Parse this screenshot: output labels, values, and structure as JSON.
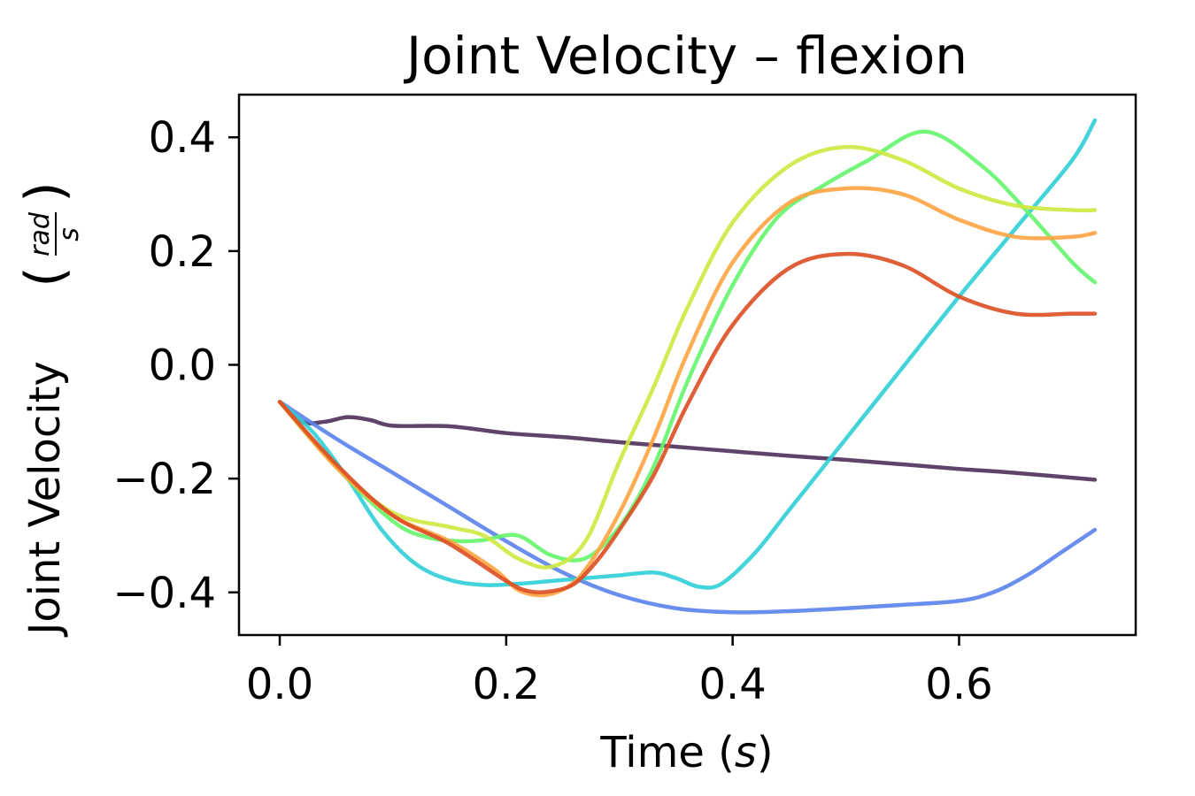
{
  "chart_data": {
    "type": "line",
    "title": "Joint Velocity – flexion",
    "xlabel": "Time",
    "xlabel_unit": "s",
    "ylabel": "Joint Velocity",
    "ylabel_unit_num": "rad",
    "ylabel_unit_den": "s",
    "xlim": [
      -0.036,
      0.756
    ],
    "ylim": [
      -0.475,
      0.475
    ],
    "xticks": [
      0.0,
      0.2,
      0.4,
      0.6
    ],
    "xtick_labels": [
      "0.0",
      "0.2",
      "0.4",
      "0.6"
    ],
    "yticks": [
      0.4,
      0.2,
      0.0,
      -0.2,
      -0.4
    ],
    "ytick_labels": [
      "0.4",
      "0.2",
      "0.0",
      "−0.2",
      "−0.4"
    ],
    "grid": false,
    "series": [
      {
        "name": "series-1",
        "color": "#4B3058",
        "x": [
          0,
          0.02,
          0.04,
          0.06,
          0.08,
          0.1,
          0.15,
          0.2,
          0.25,
          0.3,
          0.35,
          0.4,
          0.45,
          0.5,
          0.55,
          0.6,
          0.65,
          0.72
        ],
        "y": [
          -0.065,
          -0.1,
          -0.1,
          -0.092,
          -0.097,
          -0.107,
          -0.108,
          -0.12,
          -0.127,
          -0.136,
          -0.144,
          -0.152,
          -0.16,
          -0.167,
          -0.175,
          -0.183,
          -0.19,
          -0.202
        ]
      },
      {
        "name": "series-2",
        "color": "#5A82EC",
        "x": [
          0,
          0.05,
          0.1,
          0.15,
          0.2,
          0.25,
          0.3,
          0.35,
          0.4,
          0.45,
          0.5,
          0.55,
          0.6,
          0.63,
          0.66,
          0.69,
          0.72
        ],
        "y": [
          -0.065,
          -0.13,
          -0.19,
          -0.25,
          -0.31,
          -0.365,
          -0.405,
          -0.428,
          -0.435,
          -0.433,
          -0.428,
          -0.422,
          -0.415,
          -0.4,
          -0.37,
          -0.33,
          -0.29
        ]
      },
      {
        "name": "series-3",
        "color": "#2ECFD6",
        "x": [
          0,
          0.03,
          0.06,
          0.09,
          0.12,
          0.15,
          0.18,
          0.21,
          0.24,
          0.27,
          0.3,
          0.33,
          0.35,
          0.37,
          0.39,
          0.42,
          0.45,
          0.5,
          0.55,
          0.6,
          0.65,
          0.7,
          0.72
        ],
        "y": [
          -0.065,
          -0.12,
          -0.2,
          -0.29,
          -0.35,
          -0.378,
          -0.387,
          -0.385,
          -0.38,
          -0.375,
          -0.37,
          -0.365,
          -0.375,
          -0.39,
          -0.385,
          -0.33,
          -0.255,
          -0.13,
          -0.005,
          0.12,
          0.24,
          0.36,
          0.43
        ]
      },
      {
        "name": "series-4",
        "color": "#64F56A",
        "x": [
          0,
          0.05,
          0.1,
          0.13,
          0.16,
          0.18,
          0.21,
          0.24,
          0.27,
          0.3,
          0.33,
          0.36,
          0.4,
          0.44,
          0.48,
          0.52,
          0.57,
          0.62,
          0.66,
          0.7,
          0.72
        ],
        "y": [
          -0.065,
          -0.18,
          -0.275,
          -0.303,
          -0.31,
          -0.308,
          -0.3,
          -0.335,
          -0.34,
          -0.285,
          -0.18,
          -0.03,
          0.14,
          0.26,
          0.315,
          0.36,
          0.41,
          0.35,
          0.27,
          0.18,
          0.145
        ]
      },
      {
        "name": "series-5",
        "color": "#CFE840",
        "x": [
          0,
          0.05,
          0.1,
          0.15,
          0.18,
          0.21,
          0.24,
          0.27,
          0.3,
          0.33,
          0.36,
          0.4,
          0.45,
          0.5,
          0.55,
          0.6,
          0.65,
          0.7,
          0.72
        ],
        "y": [
          -0.065,
          -0.18,
          -0.26,
          -0.285,
          -0.3,
          -0.34,
          -0.355,
          -0.31,
          -0.17,
          -0.04,
          0.1,
          0.25,
          0.35,
          0.383,
          0.36,
          0.31,
          0.28,
          0.272,
          0.272
        ]
      },
      {
        "name": "series-6",
        "color": "#FEA441",
        "x": [
          0,
          0.05,
          0.1,
          0.15,
          0.19,
          0.21,
          0.23,
          0.25,
          0.27,
          0.3,
          0.33,
          0.36,
          0.4,
          0.45,
          0.5,
          0.55,
          0.6,
          0.65,
          0.7,
          0.72
        ],
        "y": [
          -0.065,
          -0.18,
          -0.265,
          -0.31,
          -0.36,
          -0.395,
          -0.405,
          -0.395,
          -0.36,
          -0.26,
          -0.13,
          0.02,
          0.18,
          0.285,
          0.31,
          0.3,
          0.255,
          0.225,
          0.225,
          0.232
        ]
      },
      {
        "name": "series-7",
        "color": "#DC4E24",
        "x": [
          0,
          0.05,
          0.1,
          0.15,
          0.2,
          0.22,
          0.24,
          0.26,
          0.28,
          0.3,
          0.33,
          0.36,
          0.4,
          0.45,
          0.5,
          0.55,
          0.6,
          0.65,
          0.7,
          0.72
        ],
        "y": [
          -0.065,
          -0.175,
          -0.265,
          -0.315,
          -0.38,
          -0.398,
          -0.398,
          -0.385,
          -0.345,
          -0.29,
          -0.195,
          -0.07,
          0.07,
          0.17,
          0.195,
          0.175,
          0.12,
          0.09,
          0.09,
          0.09
        ]
      }
    ]
  }
}
